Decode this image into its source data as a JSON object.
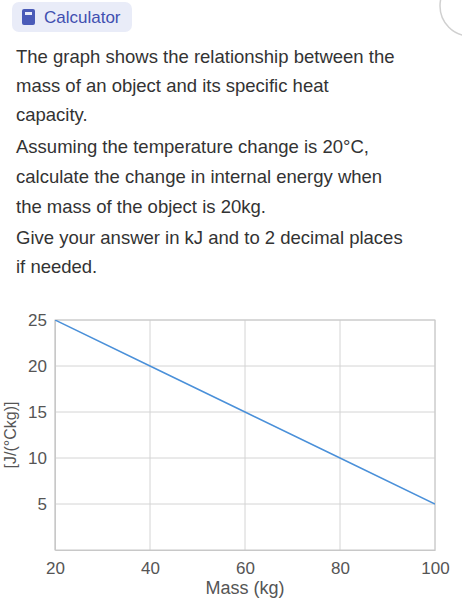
{
  "calculator_button": "Calculator",
  "question": [
    "The graph shows the relationship between the",
    "mass of an object and its specific heat",
    "capacity.",
    "Assuming the temperature change is 20°C,",
    "calculate the change in internal energy when",
    "the mass of the object is 20kg.",
    "Give your answer in kJ and to 2 decimal places",
    "if needed."
  ],
  "chart_data": {
    "type": "line",
    "x_label": "Mass (kg)",
    "y_label": "[J/(°Ckg)]",
    "x": [
      20,
      40,
      60,
      80,
      100
    ],
    "values": [
      25,
      20,
      15,
      10,
      5
    ],
    "color": "#4a90d9",
    "xlim": [
      20,
      100
    ],
    "xticks": [
      20,
      40,
      60,
      80,
      100
    ],
    "ylim": [
      0,
      25
    ],
    "yticks": [
      5,
      10,
      15,
      20,
      25
    ],
    "grid": true
  }
}
